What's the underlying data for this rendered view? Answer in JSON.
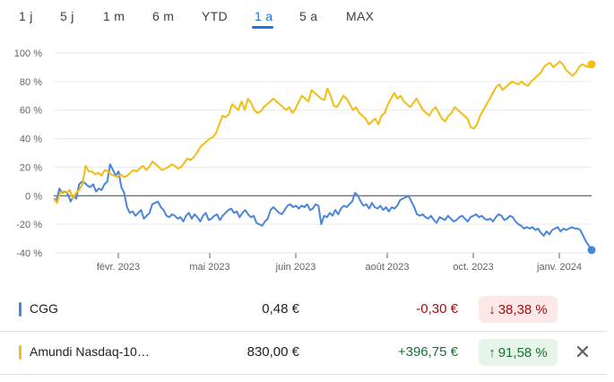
{
  "range_tabs": [
    {
      "label": "1 j",
      "active": false
    },
    {
      "label": "5 j",
      "active": false
    },
    {
      "label": "1 m",
      "active": false
    },
    {
      "label": "6 m",
      "active": false
    },
    {
      "label": "YTD",
      "active": false
    },
    {
      "label": "1 a",
      "active": true
    },
    {
      "label": "5 a",
      "active": false
    },
    {
      "label": "MAX",
      "active": false
    }
  ],
  "chart_data": {
    "type": "line",
    "y_ticks": [
      "100 %",
      "80 %",
      "60 %",
      "40 %",
      "20 %",
      "0 %",
      "-20 %",
      "-40 %"
    ],
    "y_tick_values": [
      100,
      80,
      60,
      40,
      20,
      0,
      -20,
      -40
    ],
    "ylim": [
      -40,
      100
    ],
    "x_tick_labels": [
      "févr. 2023",
      "mai 2023",
      "juin 2023",
      "août 2023",
      "oct. 2023",
      "janv. 2024"
    ],
    "x_tick_positions": [
      0.12,
      0.29,
      0.45,
      0.62,
      0.78,
      0.94
    ],
    "grid": true,
    "series": [
      {
        "name": "CGG",
        "color": "#4a86d8",
        "values": [
          -2,
          -3,
          5,
          2,
          3,
          1,
          -4,
          0,
          -2,
          8,
          10,
          9,
          7,
          6,
          8,
          3,
          5,
          4,
          8,
          10,
          22,
          18,
          14,
          17,
          6,
          2,
          -8,
          -12,
          -11,
          -14,
          -12,
          -10,
          -16,
          -14,
          -12,
          -6,
          -5,
          -4,
          -8,
          -10,
          -14,
          -15,
          -13,
          -14,
          -16,
          -15,
          -18,
          -14,
          -12,
          -16,
          -13,
          -15,
          -18,
          -14,
          -12,
          -17,
          -16,
          -14,
          -13,
          -17,
          -14,
          -12,
          -10,
          -9,
          -12,
          -11,
          -15,
          -12,
          -10,
          -13,
          -15,
          -14,
          -19,
          -20,
          -21,
          -18,
          -16,
          -10,
          -8,
          -10,
          -12,
          -13,
          -10,
          -7,
          -6,
          -8,
          -7,
          -9,
          -7,
          -8,
          -6,
          -10,
          -9,
          -6,
          -7,
          -20,
          -14,
          -15,
          -12,
          -14,
          -10,
          -13,
          -9,
          -7,
          -8,
          -6,
          -4,
          2,
          0,
          -4,
          -7,
          -6,
          -9,
          -5,
          -8,
          -9,
          -7,
          -10,
          -8,
          -11,
          -8,
          -9,
          -7,
          -3,
          -2,
          -1,
          0,
          -4,
          -8,
          -13,
          -14,
          -13,
          -15,
          -16,
          -14,
          -17,
          -19,
          -15,
          -16,
          -17,
          -14,
          -16,
          -18,
          -17,
          -15,
          -14,
          -16,
          -18,
          -15,
          -14,
          -13,
          -15,
          -14,
          -16,
          -17,
          -16,
          -18,
          -15,
          -13,
          -14,
          -17,
          -16,
          -14,
          -15,
          -18,
          -20,
          -21,
          -23,
          -22,
          -23,
          -22,
          -24,
          -23,
          -26,
          -28,
          -25,
          -27,
          -24,
          -23,
          -22,
          -25,
          -23,
          -24,
          -23,
          -22,
          -23,
          -23,
          -24,
          -28,
          -32,
          -35,
          -38
        ]
      },
      {
        "name": "Amundi Nasdaq-10…",
        "color": "#f1bd14",
        "values": [
          -2,
          -5,
          2,
          3,
          2,
          4,
          -2,
          2,
          4,
          8,
          21,
          17,
          17,
          15,
          16,
          14,
          18,
          17,
          15,
          14,
          13,
          15,
          13,
          14,
          16,
          18,
          17,
          19,
          21,
          18,
          20,
          24,
          22,
          20,
          18,
          19,
          20,
          22,
          21,
          19,
          20,
          23,
          26,
          25,
          27,
          30,
          34,
          36,
          38,
          40,
          41,
          44,
          50,
          56,
          55,
          57,
          64,
          62,
          60,
          66,
          60,
          68,
          65,
          60,
          58,
          59,
          62,
          64,
          66,
          68,
          66,
          64,
          62,
          60,
          62,
          58,
          61,
          66,
          70,
          68,
          66,
          74,
          72,
          70,
          68,
          67,
          75,
          70,
          63,
          62,
          66,
          70,
          68,
          64,
          60,
          62,
          58,
          56,
          54,
          50,
          52,
          54,
          50,
          56,
          58,
          64,
          68,
          72,
          68,
          70,
          66,
          64,
          62,
          65,
          68,
          64,
          60,
          58,
          56,
          60,
          62,
          58,
          54,
          52,
          56,
          58,
          62,
          60,
          58,
          56,
          54,
          48,
          47,
          50,
          56,
          60,
          64,
          68,
          72,
          76,
          78,
          74,
          76,
          78,
          80,
          79,
          78,
          80,
          78,
          77,
          80,
          82,
          84,
          86,
          90,
          92,
          93,
          90,
          92,
          94,
          92,
          88,
          86,
          84,
          86,
          90,
          92,
          91,
          90,
          92
        ]
      }
    ],
    "xlabel": "",
    "ylabel": ""
  },
  "holdings": [
    {
      "name": "CGG",
      "color": "#4a86d8",
      "price": "0,48 €",
      "change": "-0,30 €",
      "pct": "38,38 %",
      "pct_arrow": "↓",
      "direction": "neg",
      "closable": false
    },
    {
      "name": "Amundi Nasdaq-10…",
      "color": "#f1bd14",
      "price": "830,00 €",
      "change": "+396,75 €",
      "pct": "91,58 %",
      "pct_arrow": "↑",
      "direction": "pos",
      "closable": true
    }
  ],
  "icons": {
    "close": "close-icon",
    "down_arrow": "arrow-down-icon",
    "up_arrow": "arrow-up-icon"
  },
  "close_glyph": "✕"
}
